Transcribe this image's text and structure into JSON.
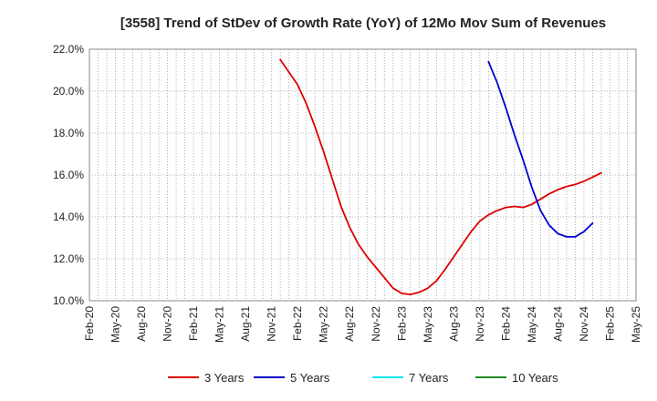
{
  "chart_data": {
    "type": "line",
    "title": "[3558]  Trend of StDev of Growth Rate (YoY) of 12Mo Mov Sum of Revenues",
    "xlabel": "",
    "ylabel": "",
    "ylim": [
      10.0,
      22.0
    ],
    "y_ticks": [
      "10.0%",
      "12.0%",
      "14.0%",
      "16.0%",
      "18.0%",
      "20.0%",
      "22.0%"
    ],
    "y_tick_values": [
      10,
      12,
      14,
      16,
      18,
      20,
      22
    ],
    "x_ticks": [
      "Feb-20",
      "May-20",
      "Aug-20",
      "Nov-20",
      "Feb-21",
      "May-21",
      "Aug-21",
      "Nov-21",
      "Feb-22",
      "May-22",
      "Aug-22",
      "Nov-22",
      "Feb-23",
      "May-23",
      "Aug-23",
      "Nov-23",
      "Feb-24",
      "May-24",
      "Aug-24",
      "Nov-24",
      "Feb-25",
      "May-25"
    ],
    "x_range_months": [
      0,
      63
    ],
    "grid": true,
    "legend_position": "bottom",
    "series": [
      {
        "name": "3 Years",
        "color": "#dd0000",
        "start_month": 22,
        "values": [
          21.5,
          20.9,
          20.3,
          19.4,
          18.3,
          17.1,
          15.8,
          14.5,
          13.5,
          12.7,
          12.1,
          11.6,
          11.1,
          10.6,
          10.35,
          10.3,
          10.4,
          10.6,
          10.95,
          11.5,
          12.1,
          12.7,
          13.3,
          13.8,
          14.1,
          14.3,
          14.45,
          14.5,
          14.45,
          14.6,
          14.85,
          15.1,
          15.3,
          15.45,
          15.55,
          15.7,
          15.9,
          16.1
        ]
      },
      {
        "name": "5 Years",
        "color": "#0000cc",
        "start_month": 46,
        "values": [
          21.4,
          20.4,
          19.2,
          17.9,
          16.7,
          15.4,
          14.3,
          13.6,
          13.2,
          13.05,
          13.05,
          13.3,
          13.7
        ]
      },
      {
        "name": "7 Years",
        "color": "#00e5ee",
        "start_month": null,
        "values": []
      },
      {
        "name": "10 Years",
        "color": "#228b22",
        "start_month": null,
        "values": []
      }
    ]
  }
}
